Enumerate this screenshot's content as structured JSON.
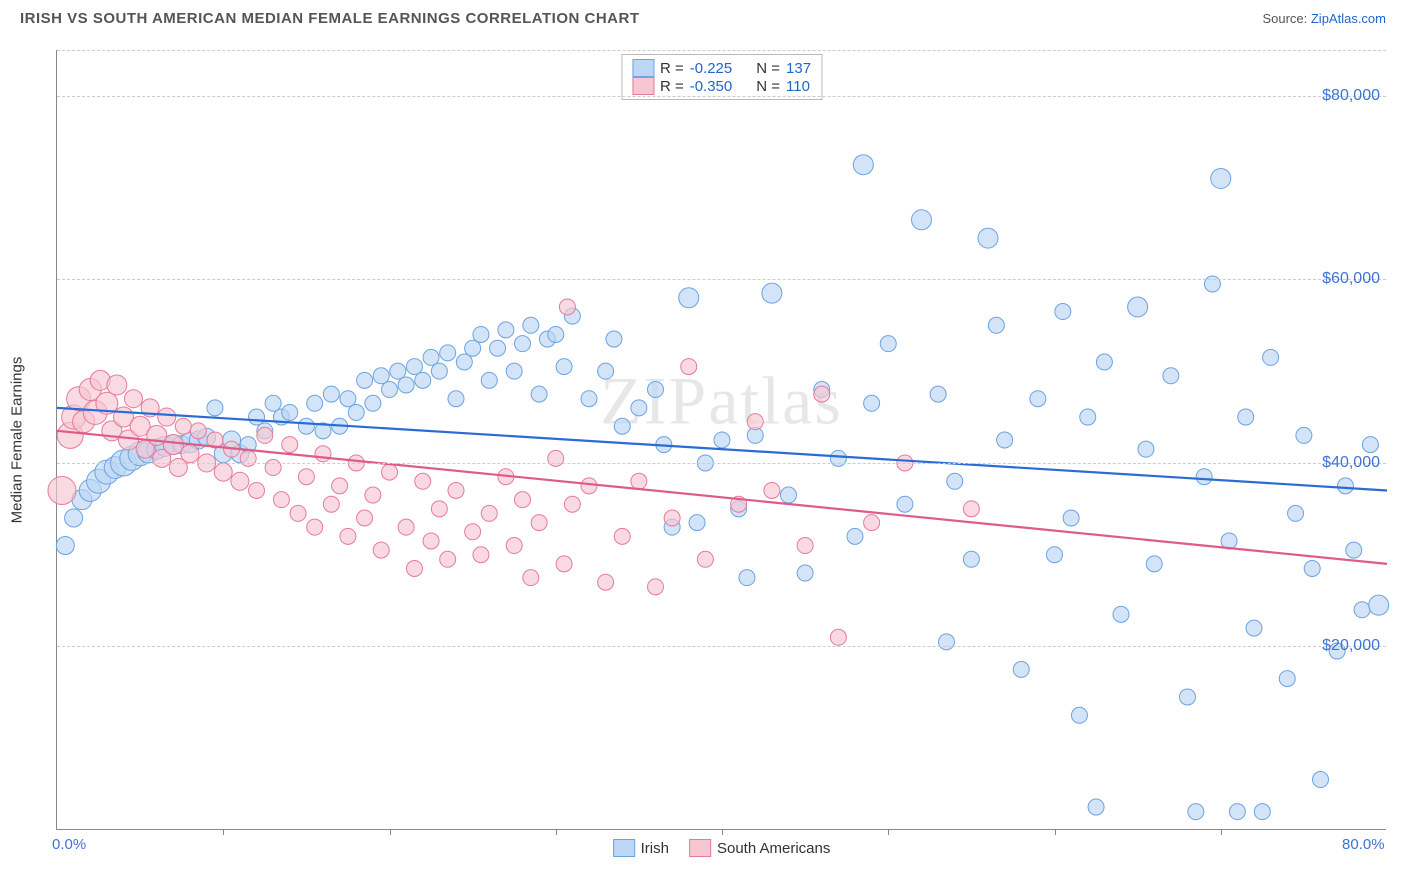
{
  "header": {
    "title": "IRISH VS SOUTH AMERICAN MEDIAN FEMALE EARNINGS CORRELATION CHART",
    "source_label": "Source: ",
    "source_name": "ZipAtlas.com"
  },
  "chart": {
    "type": "scatter",
    "ylabel": "Median Female Earnings",
    "xlabel": "",
    "xlim": [
      0,
      80
    ],
    "ylim": [
      0,
      85000
    ],
    "x_ticks": [
      {
        "pos": 0,
        "label": "0.0%"
      },
      {
        "pos": 80,
        "label": "80.0%"
      }
    ],
    "x_minor_ticks": [
      10,
      20,
      30,
      40,
      50,
      60,
      70
    ],
    "y_ticks": [
      {
        "pos": 20000,
        "label": "$20,000"
      },
      {
        "pos": 40000,
        "label": "$40,000"
      },
      {
        "pos": 60000,
        "label": "$60,000"
      },
      {
        "pos": 80000,
        "label": "$80,000"
      }
    ],
    "y_gridlines": [
      20000,
      40000,
      60000,
      80000,
      85000
    ],
    "background_color": "#ffffff",
    "grid_color": "#cccccc",
    "axis_color": "#888888",
    "tick_font_color": "#3b74d8",
    "tick_fontsize": 15,
    "label_fontsize": 15,
    "watermark": "ZIPatlas",
    "series": [
      {
        "name": "Irish",
        "marker_color": "#bcd6f4",
        "marker_border": "#6ba3e0",
        "marker_opacity": 0.65,
        "line_color": "#2b6bd4",
        "line_width": 2.2,
        "r_label": "R",
        "r_value": "-0.225",
        "n_label": "N",
        "n_value": "137",
        "trend": {
          "x1": 0,
          "y1": 46000,
          "x2": 80,
          "y2": 37000
        },
        "points": [
          [
            0.5,
            31000,
            9
          ],
          [
            1,
            34000,
            9
          ],
          [
            1.5,
            36000,
            10
          ],
          [
            2,
            37000,
            11
          ],
          [
            2.5,
            38000,
            12
          ],
          [
            3,
            39000,
            12
          ],
          [
            3.5,
            39500,
            11
          ],
          [
            4,
            40000,
            13
          ],
          [
            4.5,
            40500,
            12
          ],
          [
            5,
            41000,
            12
          ],
          [
            5.5,
            41200,
            11
          ],
          [
            6,
            41500,
            10
          ],
          [
            6.5,
            41800,
            10
          ],
          [
            7,
            42000,
            10
          ],
          [
            7.5,
            42000,
            9
          ],
          [
            8,
            42200,
            10
          ],
          [
            8.5,
            42500,
            9
          ],
          [
            9,
            42800,
            9
          ],
          [
            9.5,
            46000,
            8
          ],
          [
            10,
            41000,
            9
          ],
          [
            10.5,
            42500,
            9
          ],
          [
            11,
            41000,
            9
          ],
          [
            11.5,
            42000,
            8
          ],
          [
            12,
            45000,
            8
          ],
          [
            12.5,
            43500,
            8
          ],
          [
            13,
            46500,
            8
          ],
          [
            13.5,
            45000,
            8
          ],
          [
            14,
            45500,
            8
          ],
          [
            15,
            44000,
            8
          ],
          [
            15.5,
            46500,
            8
          ],
          [
            16,
            43500,
            8
          ],
          [
            16.5,
            47500,
            8
          ],
          [
            17,
            44000,
            8
          ],
          [
            17.5,
            47000,
            8
          ],
          [
            18,
            45500,
            8
          ],
          [
            18.5,
            49000,
            8
          ],
          [
            19,
            46500,
            8
          ],
          [
            19.5,
            49500,
            8
          ],
          [
            20,
            48000,
            8
          ],
          [
            20.5,
            50000,
            8
          ],
          [
            21,
            48500,
            8
          ],
          [
            21.5,
            50500,
            8
          ],
          [
            22,
            49000,
            8
          ],
          [
            22.5,
            51500,
            8
          ],
          [
            23,
            50000,
            8
          ],
          [
            23.5,
            52000,
            8
          ],
          [
            24,
            47000,
            8
          ],
          [
            24.5,
            51000,
            8
          ],
          [
            25,
            52500,
            8
          ],
          [
            25.5,
            54000,
            8
          ],
          [
            26,
            49000,
            8
          ],
          [
            26.5,
            52500,
            8
          ],
          [
            27,
            54500,
            8
          ],
          [
            27.5,
            50000,
            8
          ],
          [
            28,
            53000,
            8
          ],
          [
            28.5,
            55000,
            8
          ],
          [
            29,
            47500,
            8
          ],
          [
            29.5,
            53500,
            8
          ],
          [
            30,
            54000,
            8
          ],
          [
            30.5,
            50500,
            8
          ],
          [
            31,
            56000,
            8
          ],
          [
            32,
            47000,
            8
          ],
          [
            33,
            50000,
            8
          ],
          [
            33.5,
            53500,
            8
          ],
          [
            34,
            44000,
            8
          ],
          [
            35,
            46000,
            8
          ],
          [
            36,
            48000,
            8
          ],
          [
            36.5,
            42000,
            8
          ],
          [
            37,
            33000,
            8
          ],
          [
            38,
            58000,
            10
          ],
          [
            38.5,
            33500,
            8
          ],
          [
            39,
            40000,
            8
          ],
          [
            40,
            42500,
            8
          ],
          [
            41,
            35000,
            8
          ],
          [
            41.5,
            27500,
            8
          ],
          [
            42,
            43000,
            8
          ],
          [
            43,
            58500,
            10
          ],
          [
            44,
            36500,
            8
          ],
          [
            45,
            28000,
            8
          ],
          [
            46,
            48000,
            8
          ],
          [
            47,
            40500,
            8
          ],
          [
            48,
            32000,
            8
          ],
          [
            48.5,
            72500,
            10
          ],
          [
            49,
            46500,
            8
          ],
          [
            50,
            53000,
            8
          ],
          [
            51,
            35500,
            8
          ],
          [
            52,
            66500,
            10
          ],
          [
            53,
            47500,
            8
          ],
          [
            53.5,
            20500,
            8
          ],
          [
            54,
            38000,
            8
          ],
          [
            55,
            29500,
            8
          ],
          [
            56,
            64500,
            10
          ],
          [
            56.5,
            55000,
            8
          ],
          [
            57,
            42500,
            8
          ],
          [
            58,
            17500,
            8
          ],
          [
            59,
            47000,
            8
          ],
          [
            60,
            30000,
            8
          ],
          [
            60.5,
            56500,
            8
          ],
          [
            61,
            34000,
            8
          ],
          [
            61.5,
            12500,
            8
          ],
          [
            62,
            45000,
            8
          ],
          [
            62.5,
            2500,
            8
          ],
          [
            63,
            51000,
            8
          ],
          [
            64,
            23500,
            8
          ],
          [
            65,
            57000,
            10
          ],
          [
            65.5,
            41500,
            8
          ],
          [
            66,
            29000,
            8
          ],
          [
            67,
            49500,
            8
          ],
          [
            68,
            14500,
            8
          ],
          [
            68.5,
            2000,
            8
          ],
          [
            69,
            38500,
            8
          ],
          [
            69.5,
            59500,
            8
          ],
          [
            70,
            71000,
            10
          ],
          [
            70.5,
            31500,
            8
          ],
          [
            71,
            2000,
            8
          ],
          [
            71.5,
            45000,
            8
          ],
          [
            72,
            22000,
            8
          ],
          [
            72.5,
            2000,
            8
          ],
          [
            73,
            51500,
            8
          ],
          [
            74,
            16500,
            8
          ],
          [
            74.5,
            34500,
            8
          ],
          [
            75,
            43000,
            8
          ],
          [
            75.5,
            28500,
            8
          ],
          [
            76,
            5500,
            8
          ],
          [
            77,
            19500,
            8
          ],
          [
            77.5,
            37500,
            8
          ],
          [
            78,
            30500,
            8
          ],
          [
            78.5,
            24000,
            8
          ],
          [
            79,
            42000,
            8
          ],
          [
            79.5,
            24500,
            10
          ]
        ]
      },
      {
        "name": "South Americans",
        "marker_color": "#f6c6d3",
        "marker_border": "#e67a9a",
        "marker_opacity": 0.65,
        "line_color": "#e05a87",
        "line_width": 2.2,
        "r_label": "R",
        "r_value": "-0.350",
        "n_label": "N",
        "n_value": "110",
        "trend": {
          "x1": 0,
          "y1": 43500,
          "x2": 80,
          "y2": 29000
        },
        "points": [
          [
            0.3,
            37000,
            14
          ],
          [
            0.8,
            43000,
            13
          ],
          [
            1,
            45000,
            12
          ],
          [
            1.3,
            47000,
            12
          ],
          [
            1.6,
            44500,
            11
          ],
          [
            2,
            48000,
            11
          ],
          [
            2.3,
            45500,
            12
          ],
          [
            2.6,
            49000,
            10
          ],
          [
            3,
            46500,
            11
          ],
          [
            3.3,
            43500,
            10
          ],
          [
            3.6,
            48500,
            10
          ],
          [
            4,
            45000,
            10
          ],
          [
            4.3,
            42500,
            10
          ],
          [
            4.6,
            47000,
            9
          ],
          [
            5,
            44000,
            10
          ],
          [
            5.3,
            41500,
            9
          ],
          [
            5.6,
            46000,
            9
          ],
          [
            6,
            43000,
            10
          ],
          [
            6.3,
            40500,
            9
          ],
          [
            6.6,
            45000,
            9
          ],
          [
            7,
            42000,
            10
          ],
          [
            7.3,
            39500,
            9
          ],
          [
            7.6,
            44000,
            8
          ],
          [
            8,
            41000,
            9
          ],
          [
            8.5,
            43500,
            8
          ],
          [
            9,
            40000,
            9
          ],
          [
            9.5,
            42500,
            8
          ],
          [
            10,
            39000,
            9
          ],
          [
            10.5,
            41500,
            8
          ],
          [
            11,
            38000,
            9
          ],
          [
            11.5,
            40500,
            8
          ],
          [
            12,
            37000,
            8
          ],
          [
            12.5,
            43000,
            8
          ],
          [
            13,
            39500,
            8
          ],
          [
            13.5,
            36000,
            8
          ],
          [
            14,
            42000,
            8
          ],
          [
            14.5,
            34500,
            8
          ],
          [
            15,
            38500,
            8
          ],
          [
            15.5,
            33000,
            8
          ],
          [
            16,
            41000,
            8
          ],
          [
            16.5,
            35500,
            8
          ],
          [
            17,
            37500,
            8
          ],
          [
            17.5,
            32000,
            8
          ],
          [
            18,
            40000,
            8
          ],
          [
            18.5,
            34000,
            8
          ],
          [
            19,
            36500,
            8
          ],
          [
            19.5,
            30500,
            8
          ],
          [
            20,
            39000,
            8
          ],
          [
            21,
            33000,
            8
          ],
          [
            21.5,
            28500,
            8
          ],
          [
            22,
            38000,
            8
          ],
          [
            22.5,
            31500,
            8
          ],
          [
            23,
            35000,
            8
          ],
          [
            23.5,
            29500,
            8
          ],
          [
            24,
            37000,
            8
          ],
          [
            25,
            32500,
            8
          ],
          [
            25.5,
            30000,
            8
          ],
          [
            26,
            34500,
            8
          ],
          [
            27,
            38500,
            8
          ],
          [
            27.5,
            31000,
            8
          ],
          [
            28,
            36000,
            8
          ],
          [
            28.5,
            27500,
            8
          ],
          [
            29,
            33500,
            8
          ],
          [
            30,
            40500,
            8
          ],
          [
            30.5,
            29000,
            8
          ],
          [
            30.7,
            57000,
            8
          ],
          [
            31,
            35500,
            8
          ],
          [
            32,
            37500,
            8
          ],
          [
            33,
            27000,
            8
          ],
          [
            34,
            32000,
            8
          ],
          [
            35,
            38000,
            8
          ],
          [
            36,
            26500,
            8
          ],
          [
            37,
            34000,
            8
          ],
          [
            38,
            50500,
            8
          ],
          [
            39,
            29500,
            8
          ],
          [
            41,
            35500,
            8
          ],
          [
            42,
            44500,
            8
          ],
          [
            43,
            37000,
            8
          ],
          [
            45,
            31000,
            8
          ],
          [
            46,
            47500,
            8
          ],
          [
            47,
            21000,
            8
          ],
          [
            49,
            33500,
            8
          ],
          [
            51,
            40000,
            8
          ],
          [
            55,
            35000,
            8
          ]
        ]
      }
    ],
    "legend_bottom": [
      {
        "label": "Irish",
        "swatch_fill": "#bcd6f4",
        "swatch_border": "#6ba3e0"
      },
      {
        "label": "South Americans",
        "swatch_fill": "#f6c6d3",
        "swatch_border": "#e67a9a"
      }
    ]
  }
}
